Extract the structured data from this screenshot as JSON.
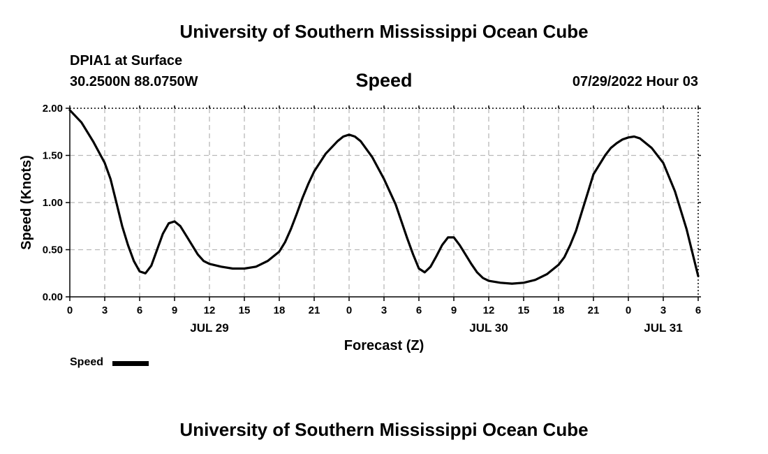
{
  "header": {
    "title": "University of Southern Mississippi Ocean Cube",
    "station": "DPIA1 at Surface",
    "coords": "30.2500N  88.0750W",
    "datetime": "07/29/2022 Hour 03"
  },
  "footer": {
    "title": "University of Southern Mississippi Ocean Cube"
  },
  "legend": {
    "label": "Speed",
    "color": "#000000"
  },
  "chart_data": {
    "type": "line",
    "title": "Speed",
    "xlabel": "Forecast (Z)",
    "ylabel": "Speed (Knots)",
    "xlim": [
      0,
      54
    ],
    "ylim": [
      0,
      2
    ],
    "grid": true,
    "x_ticks": [
      0,
      3,
      6,
      9,
      12,
      15,
      18,
      21,
      24,
      27,
      30,
      33,
      36,
      39,
      42,
      45,
      48,
      51,
      54
    ],
    "x_tick_labels": [
      "0",
      "3",
      "6",
      "9",
      "12",
      "15",
      "18",
      "21",
      "0",
      "3",
      "6",
      "9",
      "12",
      "15",
      "18",
      "21",
      "0",
      "3",
      "6"
    ],
    "y_ticks": [
      0,
      0.5,
      1.0,
      1.5,
      2.0
    ],
    "y_tick_labels": [
      "0.00",
      "0.50",
      "1.00",
      "1.50",
      "2.00"
    ],
    "date_labels": [
      {
        "x": 12,
        "label": "JUL 29"
      },
      {
        "x": 36,
        "label": "JUL 30"
      },
      {
        "x": 51,
        "label": "JUL 31"
      }
    ],
    "series": [
      {
        "name": "Speed",
        "color": "#000000",
        "x": [
          0,
          1,
          2,
          3,
          3.5,
          4,
          4.5,
          5,
          5.5,
          6,
          6.5,
          7,
          7.5,
          8,
          8.5,
          9,
          9.5,
          10,
          10.5,
          11,
          11.5,
          12,
          13,
          14,
          15,
          16,
          17,
          18,
          18.5,
          19,
          19.5,
          20,
          20.5,
          21,
          22,
          23,
          23.5,
          24,
          24.5,
          25,
          26,
          27,
          28,
          28.5,
          29,
          29.5,
          30,
          30.5,
          31,
          31.5,
          32,
          32.5,
          33,
          33.5,
          34,
          34.5,
          35,
          35.5,
          36,
          37,
          38,
          39,
          40,
          41,
          42,
          42.5,
          43,
          43.5,
          44,
          44.5,
          45,
          46,
          46.5,
          47,
          47.5,
          48,
          48.5,
          49,
          50,
          51,
          52,
          53,
          54
        ],
        "y": [
          1.98,
          1.85,
          1.65,
          1.42,
          1.25,
          1.0,
          0.75,
          0.55,
          0.38,
          0.27,
          0.25,
          0.33,
          0.5,
          0.67,
          0.78,
          0.8,
          0.75,
          0.65,
          0.55,
          0.45,
          0.38,
          0.35,
          0.32,
          0.3,
          0.3,
          0.32,
          0.38,
          0.48,
          0.58,
          0.72,
          0.88,
          1.05,
          1.2,
          1.33,
          1.52,
          1.65,
          1.7,
          1.72,
          1.7,
          1.65,
          1.48,
          1.25,
          0.98,
          0.8,
          0.62,
          0.45,
          0.3,
          0.26,
          0.32,
          0.43,
          0.55,
          0.63,
          0.63,
          0.55,
          0.45,
          0.35,
          0.26,
          0.2,
          0.17,
          0.15,
          0.14,
          0.15,
          0.18,
          0.24,
          0.34,
          0.42,
          0.55,
          0.7,
          0.9,
          1.1,
          1.3,
          1.5,
          1.58,
          1.63,
          1.67,
          1.69,
          1.7,
          1.68,
          1.58,
          1.42,
          1.12,
          0.72,
          0.22
        ]
      }
    ]
  }
}
